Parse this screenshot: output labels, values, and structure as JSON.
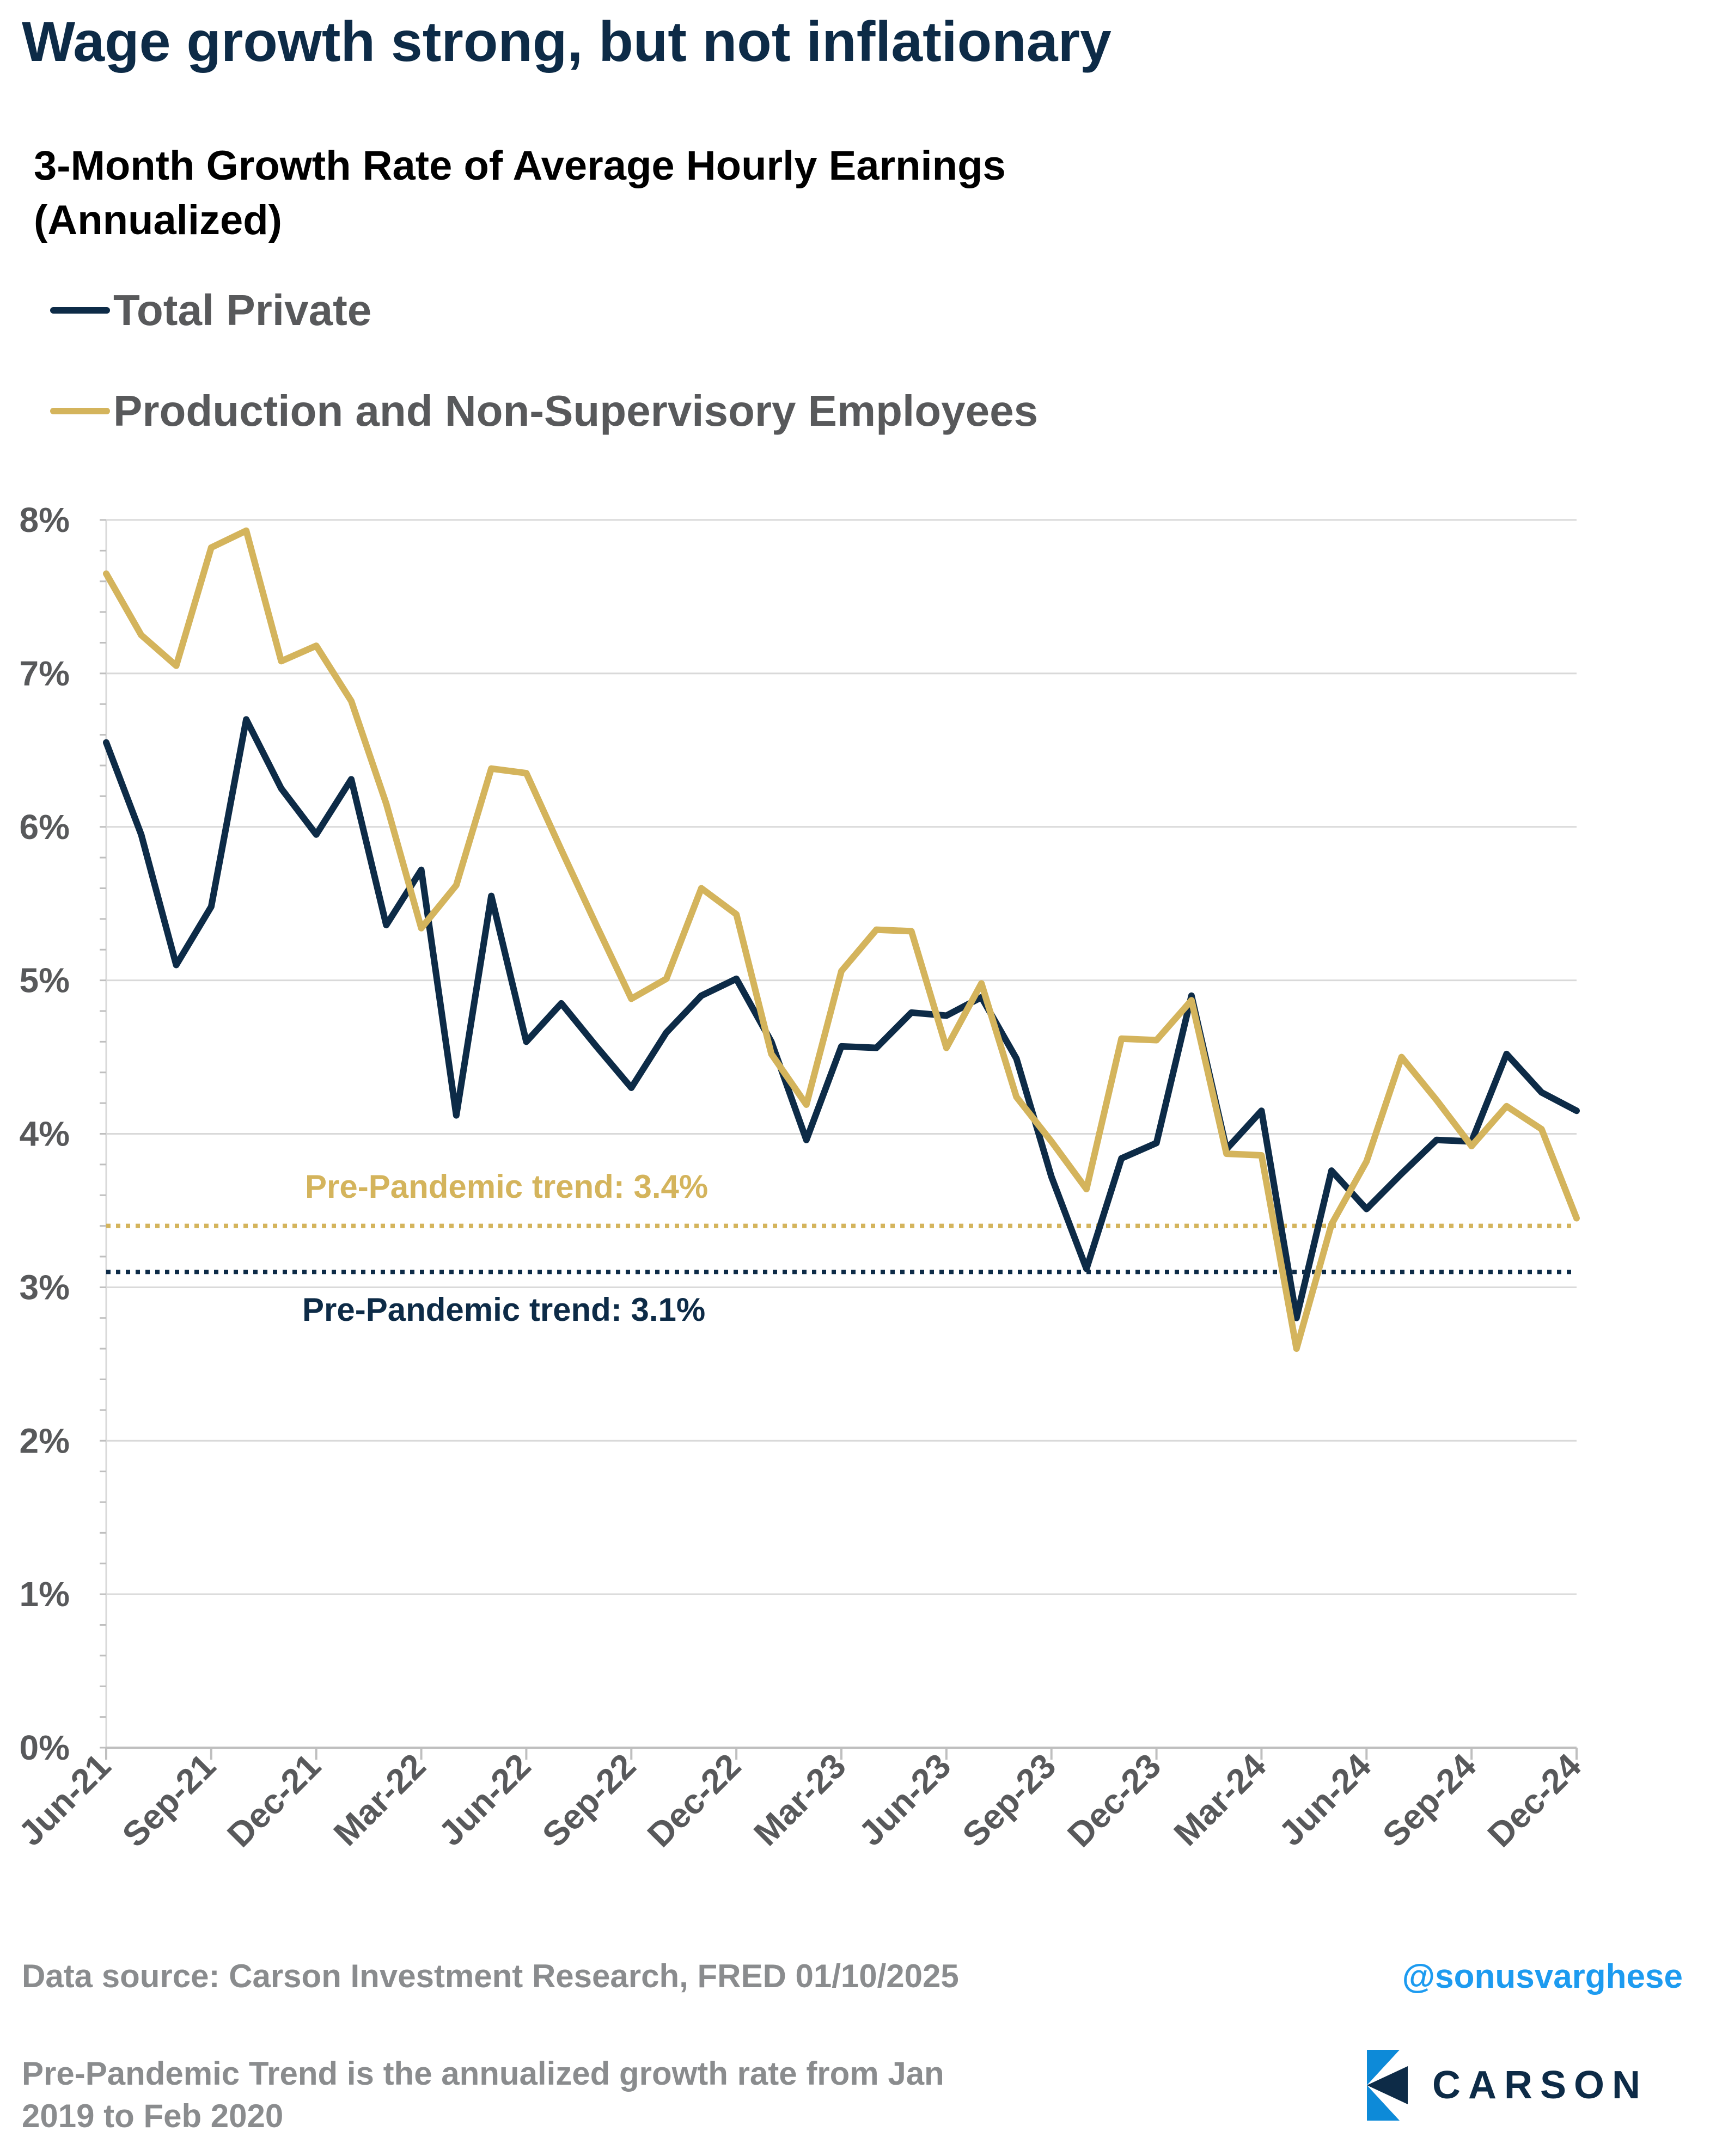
{
  "header": {
    "title": "Wage growth strong, but not inflationary",
    "subtitle": "3-Month Growth Rate of Average Hourly Earnings (Annualized)"
  },
  "legend": [
    {
      "label": "Total Private",
      "color": "#0d2b47"
    },
    {
      "label": "Production and Non-Supervisory Employees",
      "color": "#d4b45c"
    }
  ],
  "chart_data": {
    "type": "line",
    "ylim": [
      0,
      8
    ],
    "y_ticks": [
      "0%",
      "1%",
      "2%",
      "3%",
      "4%",
      "5%",
      "6%",
      "7%",
      "8%"
    ],
    "x_tick_labels": [
      "Jun-21",
      "Sep-21",
      "Dec-21",
      "Mar-22",
      "Jun-22",
      "Sep-22",
      "Dec-22",
      "Mar-23",
      "Jun-23",
      "Sep-23",
      "Dec-23",
      "Mar-24",
      "Jun-24",
      "Sep-24",
      "Dec-24"
    ],
    "x": [
      "Jun-21",
      "Jul-21",
      "Aug-21",
      "Sep-21",
      "Oct-21",
      "Nov-21",
      "Dec-21",
      "Jan-22",
      "Feb-22",
      "Mar-22",
      "Apr-22",
      "May-22",
      "Jun-22",
      "Jul-22",
      "Aug-22",
      "Sep-22",
      "Oct-22",
      "Nov-22",
      "Dec-22",
      "Jan-23",
      "Feb-23",
      "Mar-23",
      "Apr-23",
      "May-23",
      "Jun-23",
      "Jul-23",
      "Aug-23",
      "Sep-23",
      "Oct-23",
      "Nov-23",
      "Dec-23",
      "Jan-24",
      "Feb-24",
      "Mar-24",
      "Apr-24",
      "May-24",
      "Jun-24",
      "Jul-24",
      "Aug-24",
      "Sep-24",
      "Oct-24",
      "Nov-24",
      "Dec-24"
    ],
    "grid": true,
    "series": [
      {
        "name": "Total Private",
        "color": "#0d2b47",
        "values": [
          6.55,
          5.95,
          5.1,
          5.48,
          6.7,
          6.25,
          5.95,
          6.31,
          5.36,
          5.72,
          4.12,
          5.55,
          4.6,
          4.85,
          4.57,
          4.3,
          4.66,
          4.9,
          5.01,
          4.6,
          3.96,
          4.57,
          4.56,
          4.79,
          4.77,
          4.89,
          4.49,
          3.72,
          3.12,
          3.84,
          3.94,
          4.9,
          3.9,
          4.15,
          2.8,
          3.76,
          3.51,
          3.74,
          3.96,
          3.95,
          4.52,
          4.27,
          4.15
        ]
      },
      {
        "name": "Production and Non-Supervisory Employees",
        "color": "#d4b45c",
        "values": [
          7.65,
          7.25,
          7.05,
          7.82,
          7.93,
          7.08,
          7.18,
          6.82,
          6.15,
          5.34,
          5.62,
          6.38,
          6.35,
          5.85,
          5.36,
          4.88,
          5.01,
          5.6,
          5.43,
          4.52,
          4.19,
          5.06,
          5.33,
          5.32,
          4.56,
          4.98,
          4.24,
          3.95,
          3.64,
          4.62,
          4.61,
          4.87,
          3.87,
          3.86,
          2.6,
          3.41,
          3.82,
          4.5,
          4.22,
          3.92,
          4.18,
          4.03,
          3.45
        ]
      }
    ],
    "reference_lines": [
      {
        "label": "Pre-Pandemic trend: 3.4%",
        "value": 3.4,
        "color": "#d4b45c"
      },
      {
        "label": "Pre-Pandemic trend: 3.1%",
        "value": 3.1,
        "color": "#0d2b47"
      }
    ]
  },
  "footer": {
    "source": "Data source: Carson Investment Research, FRED   01/10/2025",
    "handle": "@sonusvarghese",
    "note": "Pre-Pandemic Trend is the annualized growth rate from Jan 2019 to Feb 2020",
    "logo_text": "CARSON"
  }
}
